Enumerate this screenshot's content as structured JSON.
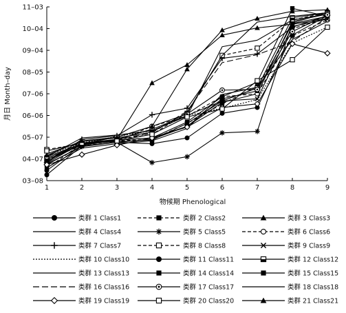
{
  "chart_data": {
    "type": "line",
    "xlabel": "物候期 Phenological",
    "ylabel": "月日 Month–day",
    "x": [
      1,
      2,
      3,
      4,
      5,
      6,
      7,
      8,
      9
    ],
    "yticks": [
      "03–08",
      "04–07",
      "05–07",
      "06–06",
      "07–06",
      "08–05",
      "09–04",
      "10–04",
      "11–03"
    ],
    "ylim": [
      "03–08",
      "11–03"
    ],
    "series": [
      {
        "name": "类群 1 Class1",
        "style": "solid",
        "marker": "filled-circle",
        "values": [
          "03–22",
          "04–26",
          "05–03",
          "05–06",
          "05–22",
          "06–24",
          "07–06",
          "10–14",
          "10–24"
        ]
      },
      {
        "name": "类群 2 Class2",
        "style": "dash",
        "marker": "filled-square",
        "values": [
          "03–25",
          "04–28",
          "05–02",
          "05–04",
          "05–26",
          "06–22",
          "07–16",
          "10–04",
          "10–18"
        ]
      },
      {
        "name": "类群 3 Class3",
        "style": "solid",
        "marker": "filled-triangle",
        "values": [
          "04–01",
          "04–29",
          "05–04",
          "07–21",
          "08–15",
          "09–25",
          "10–05",
          "10–10",
          "10–18"
        ]
      },
      {
        "name": "类群 4 Class4",
        "style": "solid",
        "marker": "none",
        "values": [
          "04–10",
          "05–06",
          "05–10",
          "05–16",
          "06–05",
          "09–09",
          "09–18",
          "10–16",
          "10–24"
        ]
      },
      {
        "name": "类群 5 Class5",
        "style": "solid",
        "marker": "star",
        "values": [
          "03–31",
          "04–24",
          "04–30",
          "04–02",
          "04–10",
          "05–13",
          "05–15",
          "10–12",
          "10–26"
        ]
      },
      {
        "name": "类群 6 Class6",
        "style": "dash",
        "marker": "open-circle",
        "values": [
          "04–05",
          "04–26",
          "05–02",
          "05–22",
          "06–05",
          "07–02",
          "07–06",
          "09–24",
          "10–16"
        ]
      },
      {
        "name": "类群 7 Class7",
        "style": "solid",
        "marker": "plus",
        "values": [
          "04–02",
          "05–04",
          "05–09",
          "06–07",
          "06–16",
          "08–24",
          "08–30",
          "10–06",
          "10–22"
        ]
      },
      {
        "name": "类群 8 Class8",
        "style": "dash",
        "marker": "open-square",
        "values": [
          "04–20",
          "04–28",
          "05–04",
          "05–11",
          "06–09",
          "08–28",
          "09–07",
          "10–16",
          "10–26"
        ]
      },
      {
        "name": "类群 9 Class9",
        "style": "solid",
        "marker": "x",
        "values": [
          "04–08",
          "04–28",
          "05–01",
          "05–03",
          "05–26",
          "06–26",
          "06–29",
          "10–07",
          "10–17"
        ]
      },
      {
        "name": "类群 10 Class10",
        "style": "dot",
        "marker": "none",
        "values": [
          "04–12",
          "04–29",
          "05–08",
          "05–16",
          "06–06",
          "06–16",
          "06–28",
          "09–14",
          "10–06"
        ]
      },
      {
        "name": "类群 11 Class11",
        "style": "solid",
        "marker": "filled-circle",
        "values": [
          "03–16",
          "04–25",
          "04–30",
          "04–28",
          "05–06",
          "06–09",
          "06–17",
          "09–25",
          "10–22"
        ]
      },
      {
        "name": "类群 12 Class12",
        "style": "solid",
        "marker": "half-square",
        "values": [
          "04–06",
          "04–27",
          "05–04",
          "05–18",
          "06–06",
          "06–26",
          "07–14",
          "10–19",
          "10–26"
        ]
      },
      {
        "name": "类群 13 Class13",
        "style": "solid",
        "marker": "none",
        "values": [
          "03–26",
          "04–22",
          "04–28",
          "05–02",
          "05–19",
          "07–05",
          "07–15",
          "09–19",
          "10–14"
        ]
      },
      {
        "name": "类群 14 Class14",
        "style": "solid",
        "marker": "filled-square",
        "values": [
          "03–30",
          "04–25",
          "04–30",
          "05–04",
          "05–22",
          "06–29",
          "07–10",
          "10–11",
          "10–21"
        ]
      },
      {
        "name": "类群 15 Class15",
        "style": "solid",
        "marker": "filled-square",
        "values": [
          "04–04",
          "04–27",
          "05–03",
          "05–06",
          "05–28",
          "07–02",
          "07–22",
          "11–01",
          "10–21"
        ]
      },
      {
        "name": "类群 16 Class16",
        "style": "longdash",
        "marker": "none",
        "values": [
          "04–08",
          "04–26",
          "05–04",
          "05–13",
          "06–12",
          "08–18",
          "08–29",
          "09–16",
          "10–20"
        ]
      },
      {
        "name": "类群 17 Class17",
        "style": "solid",
        "marker": "open-circle-dot",
        "values": [
          "04–10",
          "04–28",
          "05–07",
          "05–22",
          "06–08",
          "07–11",
          "07–12",
          "09–30",
          "10–23"
        ]
      },
      {
        "name": "类群 18 Class18",
        "style": "solid",
        "marker": "none",
        "values": [
          "04–14",
          "05–01",
          "05–06",
          "05–14",
          "06–10",
          "08–28",
          "10–13",
          "10–21",
          "10–26"
        ]
      },
      {
        "name": "类群 19 Class19",
        "style": "solid",
        "marker": "open-diamond",
        "values": [
          "03–30",
          "04–13",
          "04–26",
          "05–06",
          "05–21",
          "06–17",
          "06–22",
          "09–13",
          "08–31"
        ]
      },
      {
        "name": "类群 20 Class20",
        "style": "solid",
        "marker": "open-square",
        "values": [
          "04–18",
          "04–29",
          "05–02",
          "05–11",
          "06–04",
          "06–15",
          "07–24",
          "08–22",
          "10–06"
        ]
      },
      {
        "name": "类群 21 Class21",
        "style": "solid",
        "marker": "filled-triangle",
        "values": [
          "04–12",
          "05–02",
          "05–07",
          "05–22",
          "08–09",
          "10–02",
          "10–18",
          "10–28",
          "10–30"
        ]
      }
    ]
  }
}
